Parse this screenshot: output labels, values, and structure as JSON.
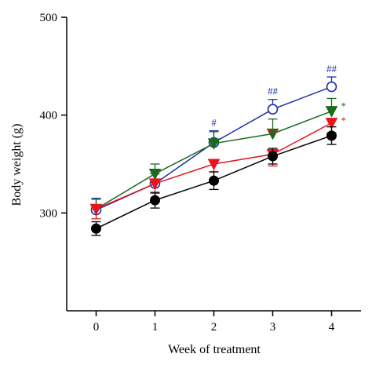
{
  "chart_data": {
    "type": "line",
    "xlabel": "Week of treatment",
    "ylabel": "Body weight (g)",
    "x": [
      0,
      1,
      2,
      3,
      4
    ],
    "xlim": [
      -0.5,
      4.5
    ],
    "ylim": [
      200,
      500
    ],
    "x_ticks": [
      "0",
      "1",
      "2",
      "3",
      "4"
    ],
    "y_ticks": [
      "300",
      "400",
      "500"
    ],
    "legend": "none",
    "grid": false,
    "series": [
      {
        "color": "#1c2fa8",
        "marker": "open-circle",
        "values": [
          303,
          330,
          372,
          406,
          429
        ],
        "errors": [
          12,
          10,
          12,
          10,
          10
        ],
        "error_dir": "up",
        "annotations": [
          {
            "x": 2,
            "text": "#"
          },
          {
            "x": 3,
            "text": "##"
          },
          {
            "x": 4,
            "text": "##"
          }
        ]
      },
      {
        "color": "#1a6b1a",
        "marker": "down-triangle",
        "values": [
          304,
          340,
          371,
          381,
          404
        ],
        "errors": [
          10,
          10,
          12,
          15,
          13
        ],
        "error_dir": "up",
        "annotations": [
          {
            "x": 4,
            "text": "*"
          }
        ]
      },
      {
        "color": "#e8141c",
        "marker": "down-triangle",
        "values": [
          304,
          330,
          350,
          360,
          392
        ],
        "errors": [
          10,
          10,
          8,
          12,
          10
        ],
        "error_dir": "down",
        "annotations": [
          {
            "x": 3,
            "text": "**"
          },
          {
            "x": 4,
            "text": "*"
          }
        ]
      },
      {
        "color": "#000000",
        "marker": "filled-circle",
        "values": [
          284,
          313,
          333,
          358,
          379
        ],
        "errors": [
          7,
          8,
          9,
          8,
          9
        ],
        "error_dir": "both",
        "annotations": []
      }
    ]
  }
}
